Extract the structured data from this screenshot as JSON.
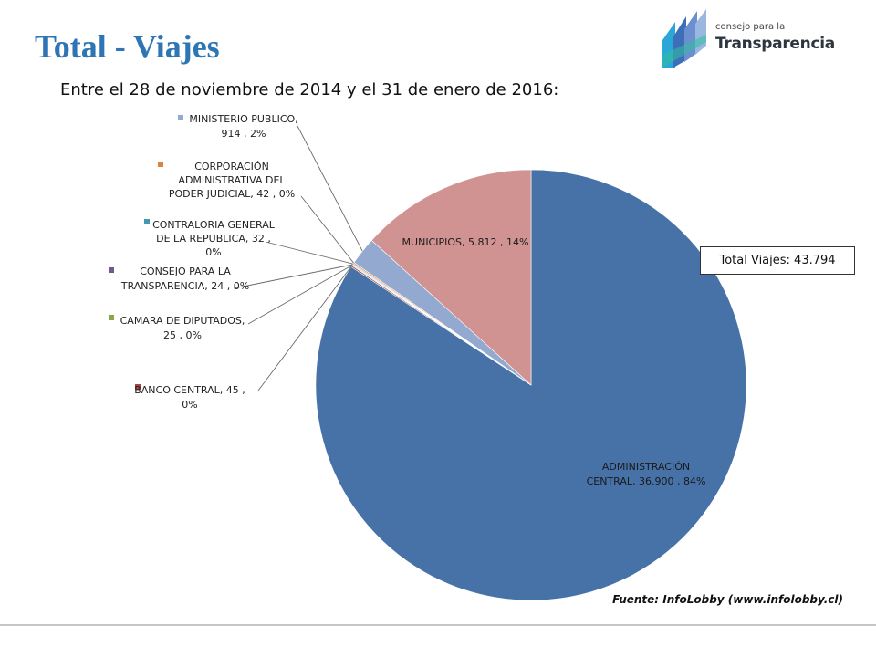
{
  "header": {
    "title": "Total - Viajes",
    "subtitle": "Entre el 28 de noviembre de 2014 y el 31 de enero de 2016:"
  },
  "logo": {
    "small_text": "consejo para la",
    "big_text": "Transparencia",
    "icon": "transparency-stripes-logo-icon"
  },
  "total_box": "Total Viajes: 43.794",
  "source": "Fuente: InfoLobby  (www.infolobby.cl)",
  "chart_data": {
    "type": "pie",
    "total": 43794,
    "slices": [
      {
        "name": "ADMINISTRACIÓN CENTRAL",
        "value": 36900,
        "percent": "84%",
        "color": "#4672A8",
        "label_lines": [
          "ADMINISTRACIÓN",
          "CENTRAL,  36.900 , 84%"
        ]
      },
      {
        "name": "BANCO CENTRAL",
        "value": 45,
        "percent": "0%",
        "color": "#AA4643",
        "label_lines": [
          "BANCO CENTRAL,  45 ,",
          "0%"
        ]
      },
      {
        "name": "CAMARA DE DIPUTADOS",
        "value": 25,
        "percent": "0%",
        "color": "#89A54E",
        "label_lines": [
          "CAMARA DE DIPUTADOS,",
          "25 , 0%"
        ]
      },
      {
        "name": "CONSEJO PARA LA TRANSPARENCIA",
        "value": 24,
        "percent": "0%",
        "color": "#71588F",
        "label_lines": [
          "CONSEJO PARA LA",
          "TRANSPARENCIA,  24 , 0%"
        ]
      },
      {
        "name": "CONTRALORIA GENERAL DE LA REPUBLICA",
        "value": 32,
        "percent": "0%",
        "color": "#4198AF",
        "label_lines": [
          "CONTRALORIA GENERAL",
          "DE LA REPUBLICA,  32 ,",
          "0%"
        ]
      },
      {
        "name": "CORPORACIÓN ADMINISTRATIVA DEL PODER JUDICIAL",
        "value": 42,
        "percent": "0%",
        "color": "#DB843D",
        "label_lines": [
          "CORPORACIÓN",
          "ADMINISTRATIVA DEL",
          "PODER JUDICIAL,  42 , 0%"
        ]
      },
      {
        "name": "MINISTERIO PUBLICO",
        "value": 914,
        "percent": "2%",
        "color": "#93A9CF",
        "label_lines": [
          "MINISTERIO PUBLICO,",
          "914 , 2%"
        ]
      },
      {
        "name": "MUNICIPIOS",
        "value": 5812,
        "percent": "14%",
        "color": "#D19392",
        "label_lines": [
          "MUNICIPIOS,  5.812 , 14%"
        ]
      }
    ]
  }
}
